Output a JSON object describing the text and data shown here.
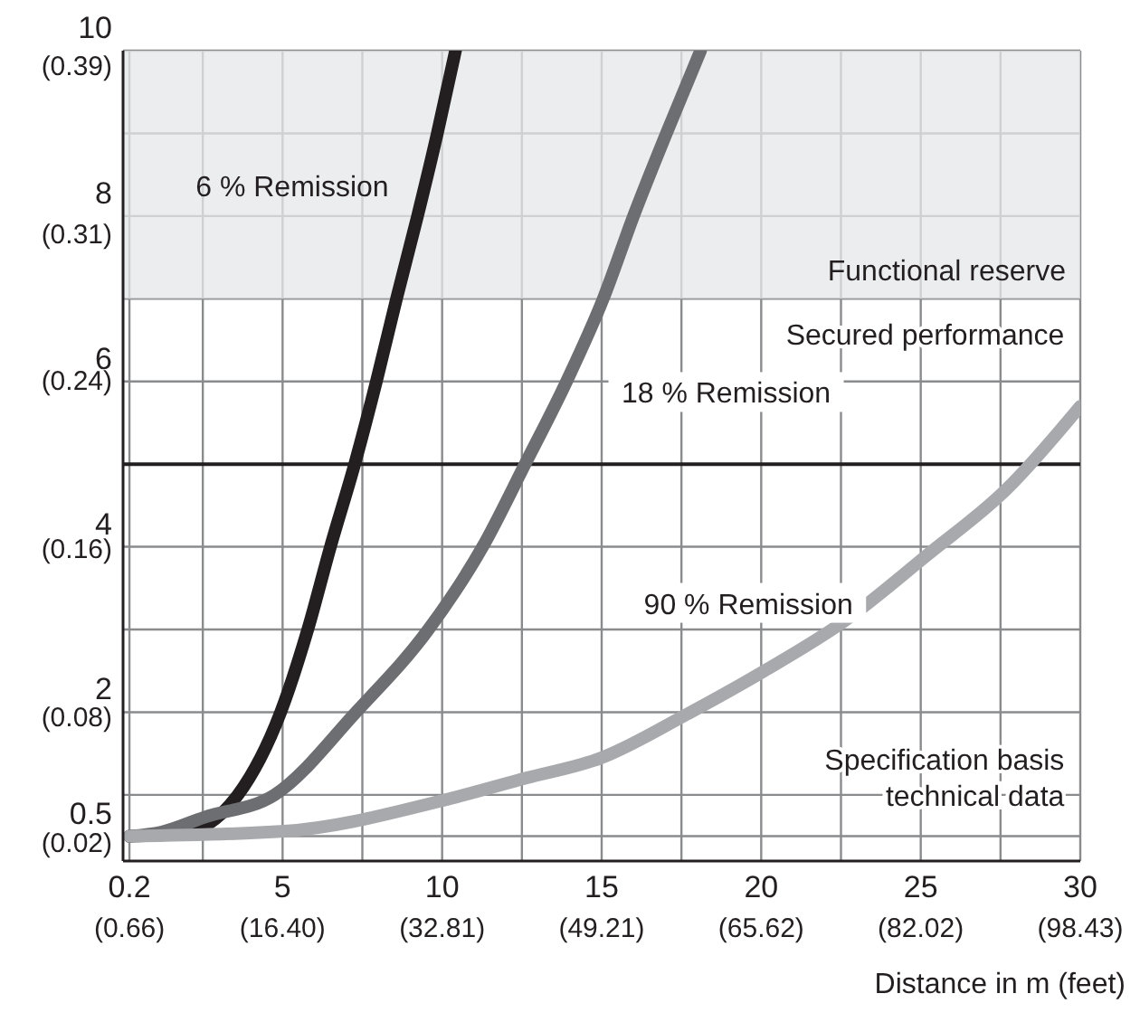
{
  "chart_data": {
    "type": "line",
    "xlabel": "Distance in m (feet)",
    "xlim": [
      0,
      30
    ],
    "xticks": [
      0.2,
      {
        "value": 2.5,
        "label": null
      },
      5,
      {
        "value": 7.5,
        "label": null
      },
      10,
      {
        "value": 12.5,
        "label": null
      },
      15,
      {
        "value": 17.5,
        "label": null
      },
      20,
      {
        "value": 22.5,
        "label": null
      },
      25,
      {
        "value": 27.5,
        "label": null
      },
      30
    ],
    "x2lim": [
      0,
      98.43
    ],
    "x2ticks": [
      {
        "value": 0.66,
        "label": "(0.66)"
      },
      {
        "value": 16.4,
        "label": "(16.40)"
      },
      {
        "value": 32.81,
        "label": "(32.81)"
      },
      {
        "value": 49.21,
        "label": "(49.21)"
      },
      {
        "value": 65.62,
        "label": "(65.62)"
      },
      {
        "value": 82.02,
        "label": "(82.02)"
      },
      {
        "value": 98.43,
        "label": "(98.43)"
      }
    ],
    "ylim": [
      0.2,
      10
    ],
    "yticks": [
      0.5,
      {
        "value": 1,
        "label": null
      },
      2,
      {
        "value": 3,
        "label": null
      },
      4,
      {
        "value": 5,
        "label": null
      },
      6,
      {
        "value": 7,
        "label": null
      },
      8,
      {
        "value": 9,
        "label": null
      },
      10
    ],
    "y2lim": [
      0.008,
      0.394
    ],
    "y2ticks": [
      {
        "value": 0.02,
        "label": "(0.02)"
      },
      {
        "value": 0.08,
        "label": "(0.08)"
      },
      {
        "value": 0.16,
        "label": "(0.16)"
      },
      {
        "value": 0.24,
        "label": "(0.24)"
      },
      {
        "value": 0.31,
        "label": "(0.31)"
      },
      {
        "value": 0.39,
        "label": "(0.39)"
      }
    ],
    "grid": true,
    "legend": false,
    "marker": "none",
    "line_style": "solid",
    "series": [
      {
        "name": "6 % Remission",
        "color": "#231f20",
        "x": [
          0.2,
          1.8,
          3.6,
          4.94,
          5.79,
          6.5,
          7.26,
          7.94,
          8.57,
          9.23,
          9.85,
          10.42
        ],
        "values": [
          0.5,
          0.53,
          1.0,
          2.0,
          3.0,
          4.0,
          5.0,
          6.0,
          7.0,
          8.0,
          9.0,
          10.0
        ]
      },
      {
        "name": "18 % Remission",
        "color": "#6d6e71",
        "x": [
          0.2,
          1.2,
          2.55,
          4.75,
          7.3,
          9.57,
          11.27,
          12.6,
          13.9,
          15.05,
          16.0,
          17.03,
          18.1
        ],
        "values": [
          0.5,
          0.55,
          0.73,
          1.0,
          2.0,
          3.0,
          4.0,
          5.0,
          6.0,
          7.0,
          8.0,
          9.0,
          10.0
        ]
      },
      {
        "name": "90 % Remission",
        "color": "#a7a9ac",
        "x": [
          0.2,
          5.05,
          10.0,
          12.6,
          15.0,
          17.6,
          20.1,
          22.6,
          25.2,
          27.7,
          30.0
        ],
        "values": [
          0.5,
          0.56,
          0.93,
          1.2,
          1.45,
          1.96,
          2.5,
          3.1,
          3.9,
          4.7,
          5.7
        ]
      }
    ],
    "bands": [
      {
        "axis": "y",
        "from": 7,
        "to": 10,
        "label": "Functional reserve",
        "color": "#e6e7e8"
      }
    ],
    "ref_lines": [
      {
        "axis": "y",
        "value": 5,
        "label": null,
        "color": "#231f20"
      }
    ],
    "annotations": [
      "Secured performance",
      "Specification basis\ntechnical data"
    ]
  }
}
